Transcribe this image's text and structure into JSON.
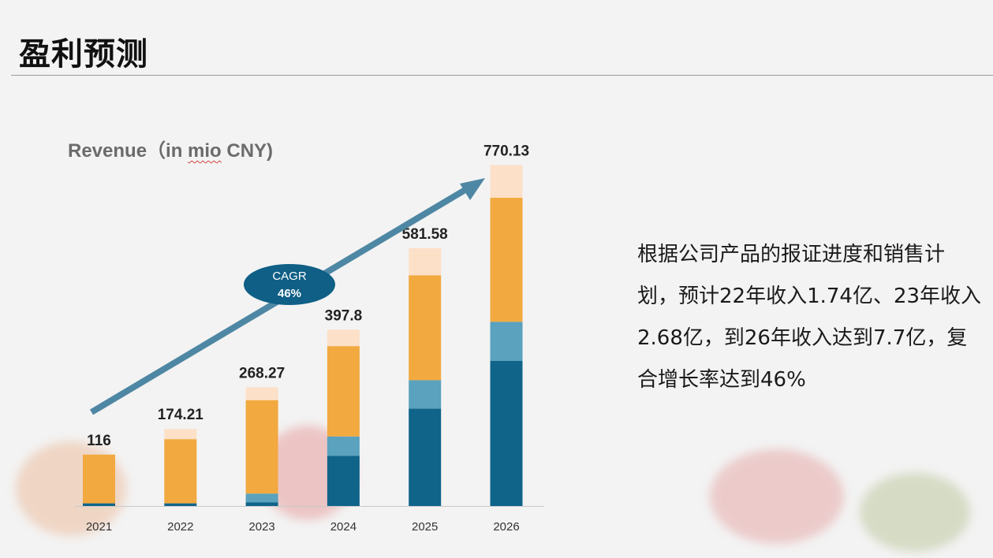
{
  "slide": {
    "title": "盈利预测",
    "description": "根据公司产品的报证进度和销售计划，预计22年收入1.74亿、23年收入2.68亿，到26年收入达到7.7亿，复合增长率达到46%"
  },
  "chart_data": {
    "type": "bar",
    "stacked": true,
    "title_prefix": "Revenue（in ",
    "title_underlined": "mio",
    "title_suffix": " CNY)",
    "categories": [
      "2021",
      "2022",
      "2023",
      "2024",
      "2025",
      "2026"
    ],
    "totals": [
      116,
      174.21,
      268.27,
      397.8,
      581.58,
      770.13
    ],
    "total_labels": [
      "116",
      "174.21",
      "268.27",
      "397.8",
      "581.58",
      "770.13"
    ],
    "series": [
      {
        "color": "#10648a",
        "values": [
          6,
          6,
          8,
          113,
          220,
          328
        ]
      },
      {
        "color": "#5aa2be",
        "values": [
          0,
          0,
          20,
          44,
          64,
          88
        ]
      },
      {
        "color": "#f2a93f",
        "values": [
          110,
          145,
          211,
          204,
          237,
          280
        ]
      },
      {
        "color": "#fde0c8",
        "values": [
          0,
          23,
          29,
          37,
          61,
          74
        ]
      }
    ],
    "ylim": [
      0,
      840
    ],
    "annotation": {
      "line1": "CAGR",
      "line2": "46%",
      "color": "#4e87a4"
    },
    "axis_color": "#c8c8c8"
  }
}
